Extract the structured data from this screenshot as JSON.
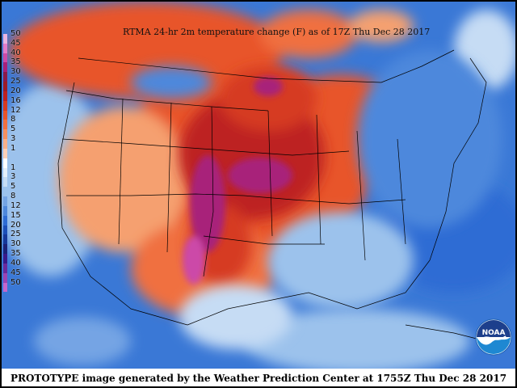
{
  "map_title": "RTMA 24-hr 2m temperature change (F) as of 17Z Thu Dec 28 2017",
  "footer": "PROTOTYPE image generated by the Weather Prediction Center at 1755Z Thu Dec 28 2017",
  "logo_text": "NOAA",
  "legend": [
    {
      "label": "50",
      "color": "#e8b4e0"
    },
    {
      "label": "45",
      "color": "#e27cc9"
    },
    {
      "label": "40",
      "color": "#cc4aa8"
    },
    {
      "label": "35",
      "color": "#a8207a"
    },
    {
      "label": "30",
      "color": "#8b1a4a"
    },
    {
      "label": "25",
      "color": "#9c1b28"
    },
    {
      "label": "20",
      "color": "#bd2020"
    },
    {
      "label": "16",
      "color": "#d63a20"
    },
    {
      "label": "12",
      "color": "#e8542a"
    },
    {
      "label": "8",
      "color": "#f07040"
    },
    {
      "label": "5",
      "color": "#f59060"
    },
    {
      "label": "3",
      "color": "#f8b08a"
    },
    {
      "label": "1",
      "color": "#fbd0b8"
    },
    {
      "label": "",
      "color": "#ffffff"
    },
    {
      "label": "1",
      "color": "#e4effa"
    },
    {
      "label": "3",
      "color": "#c6dcf4"
    },
    {
      "label": "5",
      "color": "#9cc2ec"
    },
    {
      "label": "8",
      "color": "#74a4e4"
    },
    {
      "label": "12",
      "color": "#4e88dc"
    },
    {
      "label": "15",
      "color": "#2e6cd4"
    },
    {
      "label": "20",
      "color": "#1c4fb8"
    },
    {
      "label": "25",
      "color": "#16389a"
    },
    {
      "label": "30",
      "color": "#1c2278"
    },
    {
      "label": "35",
      "color": "#3a1a88"
    },
    {
      "label": "40",
      "color": "#6a2a9c"
    },
    {
      "label": "45",
      "color": "#9a44b4"
    },
    {
      "label": "50",
      "color": "#c466cc"
    }
  ],
  "colors": {
    "ocean": "#3a78d6",
    "warm": "#e8542a",
    "hot": "#bd2020",
    "extreme": "#a8207a",
    "cold": "#4e88dc",
    "mild_warm": "#f5a070"
  }
}
